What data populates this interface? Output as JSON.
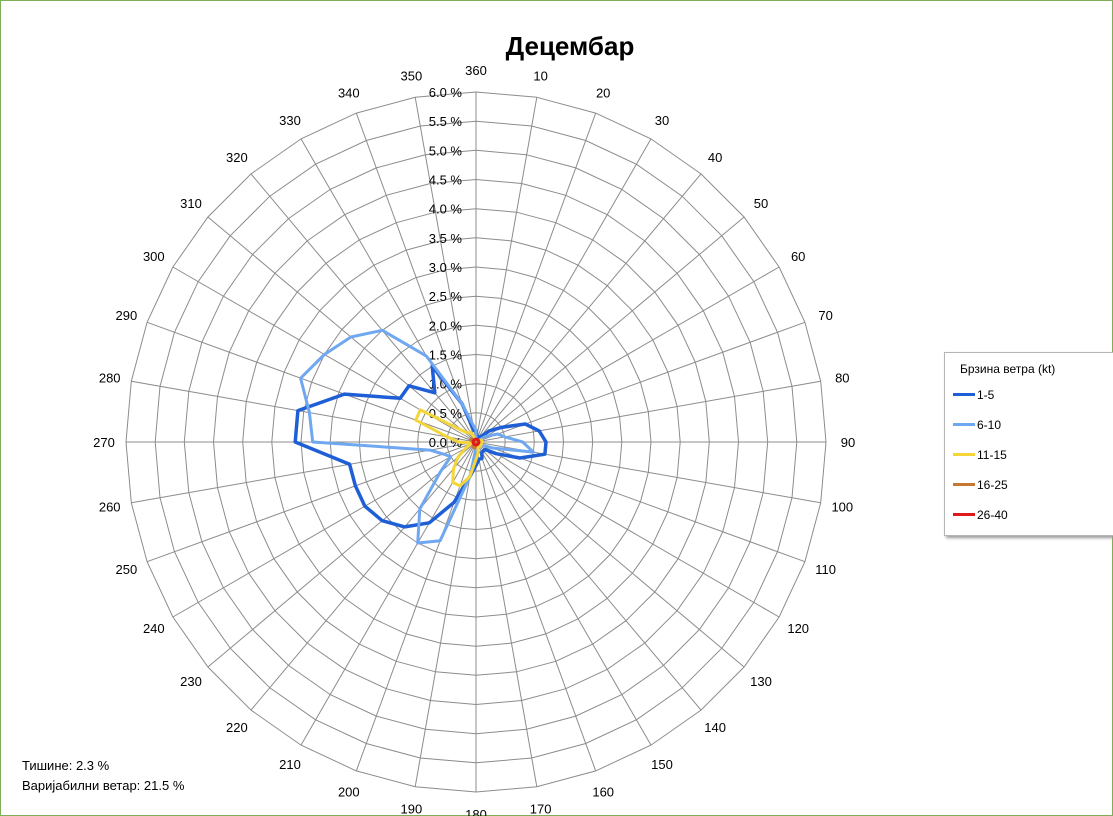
{
  "chart_data": {
    "type": "radar",
    "title": "Децембар",
    "directions": [
      10,
      20,
      30,
      40,
      50,
      60,
      70,
      80,
      90,
      100,
      110,
      120,
      130,
      140,
      150,
      160,
      170,
      180,
      190,
      200,
      210,
      220,
      230,
      240,
      250,
      260,
      270,
      280,
      290,
      300,
      310,
      320,
      330,
      340,
      350,
      360
    ],
    "radial_ticks": [
      "0.0 %",
      "0.5 %",
      "1.0 %",
      "1.5 %",
      "2.0 %",
      "2.5 %",
      "3.0 %",
      "3.5 %",
      "4.0 %",
      "4.5 %",
      "5.0 %",
      "5.5 %",
      "6.0 %"
    ],
    "rlim": [
      0,
      6
    ],
    "grid": true,
    "legend_position": "right",
    "series": [
      {
        "name": "1-5",
        "color": "#1f5fd6",
        "values": [
          0.1,
          0.1,
          0.1,
          0.1,
          0.3,
          0.5,
          0.9,
          1.1,
          1.2,
          1.2,
          0.8,
          0.4,
          0.2,
          0.2,
          0.2,
          0.3,
          0.3,
          0.4,
          0.6,
          1.1,
          1.6,
          1.9,
          2.1,
          2.2,
          2.2,
          2.2,
          3.1,
          3.1,
          2.4,
          1.5,
          1.5,
          1.1,
          1.5,
          0.7,
          0.2,
          0.2
        ]
      },
      {
        "name": "6-10",
        "color": "#6fa8f0",
        "values": [
          0.0,
          0.0,
          0.0,
          0.0,
          0.0,
          0.2,
          0.4,
          0.5,
          0.8,
          1.0,
          0.3,
          0.1,
          0.1,
          0.1,
          0.1,
          0.1,
          0.1,
          0.1,
          0.6,
          1.8,
          2.0,
          1.5,
          0.8,
          0.5,
          0.6,
          0.8,
          2.8,
          2.9,
          3.2,
          3.0,
          2.8,
          2.5,
          1.7,
          0.7,
          0.3,
          0.2
        ]
      },
      {
        "name": "11-15",
        "color": "#f5d63a",
        "values": [
          0.0,
          0.0,
          0.0,
          0.0,
          0.0,
          0.0,
          0.1,
          0.1,
          0.1,
          0.1,
          0.1,
          0.1,
          0.1,
          0.1,
          0.1,
          0.1,
          0.2,
          0.3,
          0.6,
          0.8,
          0.8,
          0.6,
          0.4,
          0.2,
          0.1,
          0.1,
          0.3,
          0.5,
          1.1,
          1.1,
          0.3,
          0.2,
          0.2,
          0.1,
          0.0,
          0.0
        ]
      },
      {
        "name": "16-25",
        "color": "#c87830",
        "values": [
          0.0,
          0.0,
          0.0,
          0.0,
          0.0,
          0.0,
          0.0,
          0.0,
          0.0,
          0.0,
          0.0,
          0.0,
          0.0,
          0.0,
          0.0,
          0.0,
          0.0,
          0.05,
          0.1,
          0.1,
          0.1,
          0.05,
          0.0,
          0.0,
          0.0,
          0.0,
          0.0,
          0.05,
          0.1,
          0.1,
          0.05,
          0.0,
          0.0,
          0.0,
          0.0,
          0.0
        ]
      },
      {
        "name": "26-40",
        "color": "#e01a1a",
        "values": [
          0.05,
          0.05,
          0.05,
          0.05,
          0.05,
          0.05,
          0.05,
          0.05,
          0.05,
          0.05,
          0.05,
          0.05,
          0.05,
          0.05,
          0.05,
          0.05,
          0.05,
          0.05,
          0.05,
          0.05,
          0.05,
          0.05,
          0.05,
          0.05,
          0.05,
          0.05,
          0.05,
          0.05,
          0.05,
          0.05,
          0.05,
          0.05,
          0.05,
          0.05,
          0.05,
          0.05
        ]
      }
    ]
  },
  "legend": {
    "title": "Брзина ветра  (kt)"
  },
  "notes": {
    "calm": "Тишине:  2.3 %",
    "variable": "Варијабилни ветар: 21.5 %"
  }
}
